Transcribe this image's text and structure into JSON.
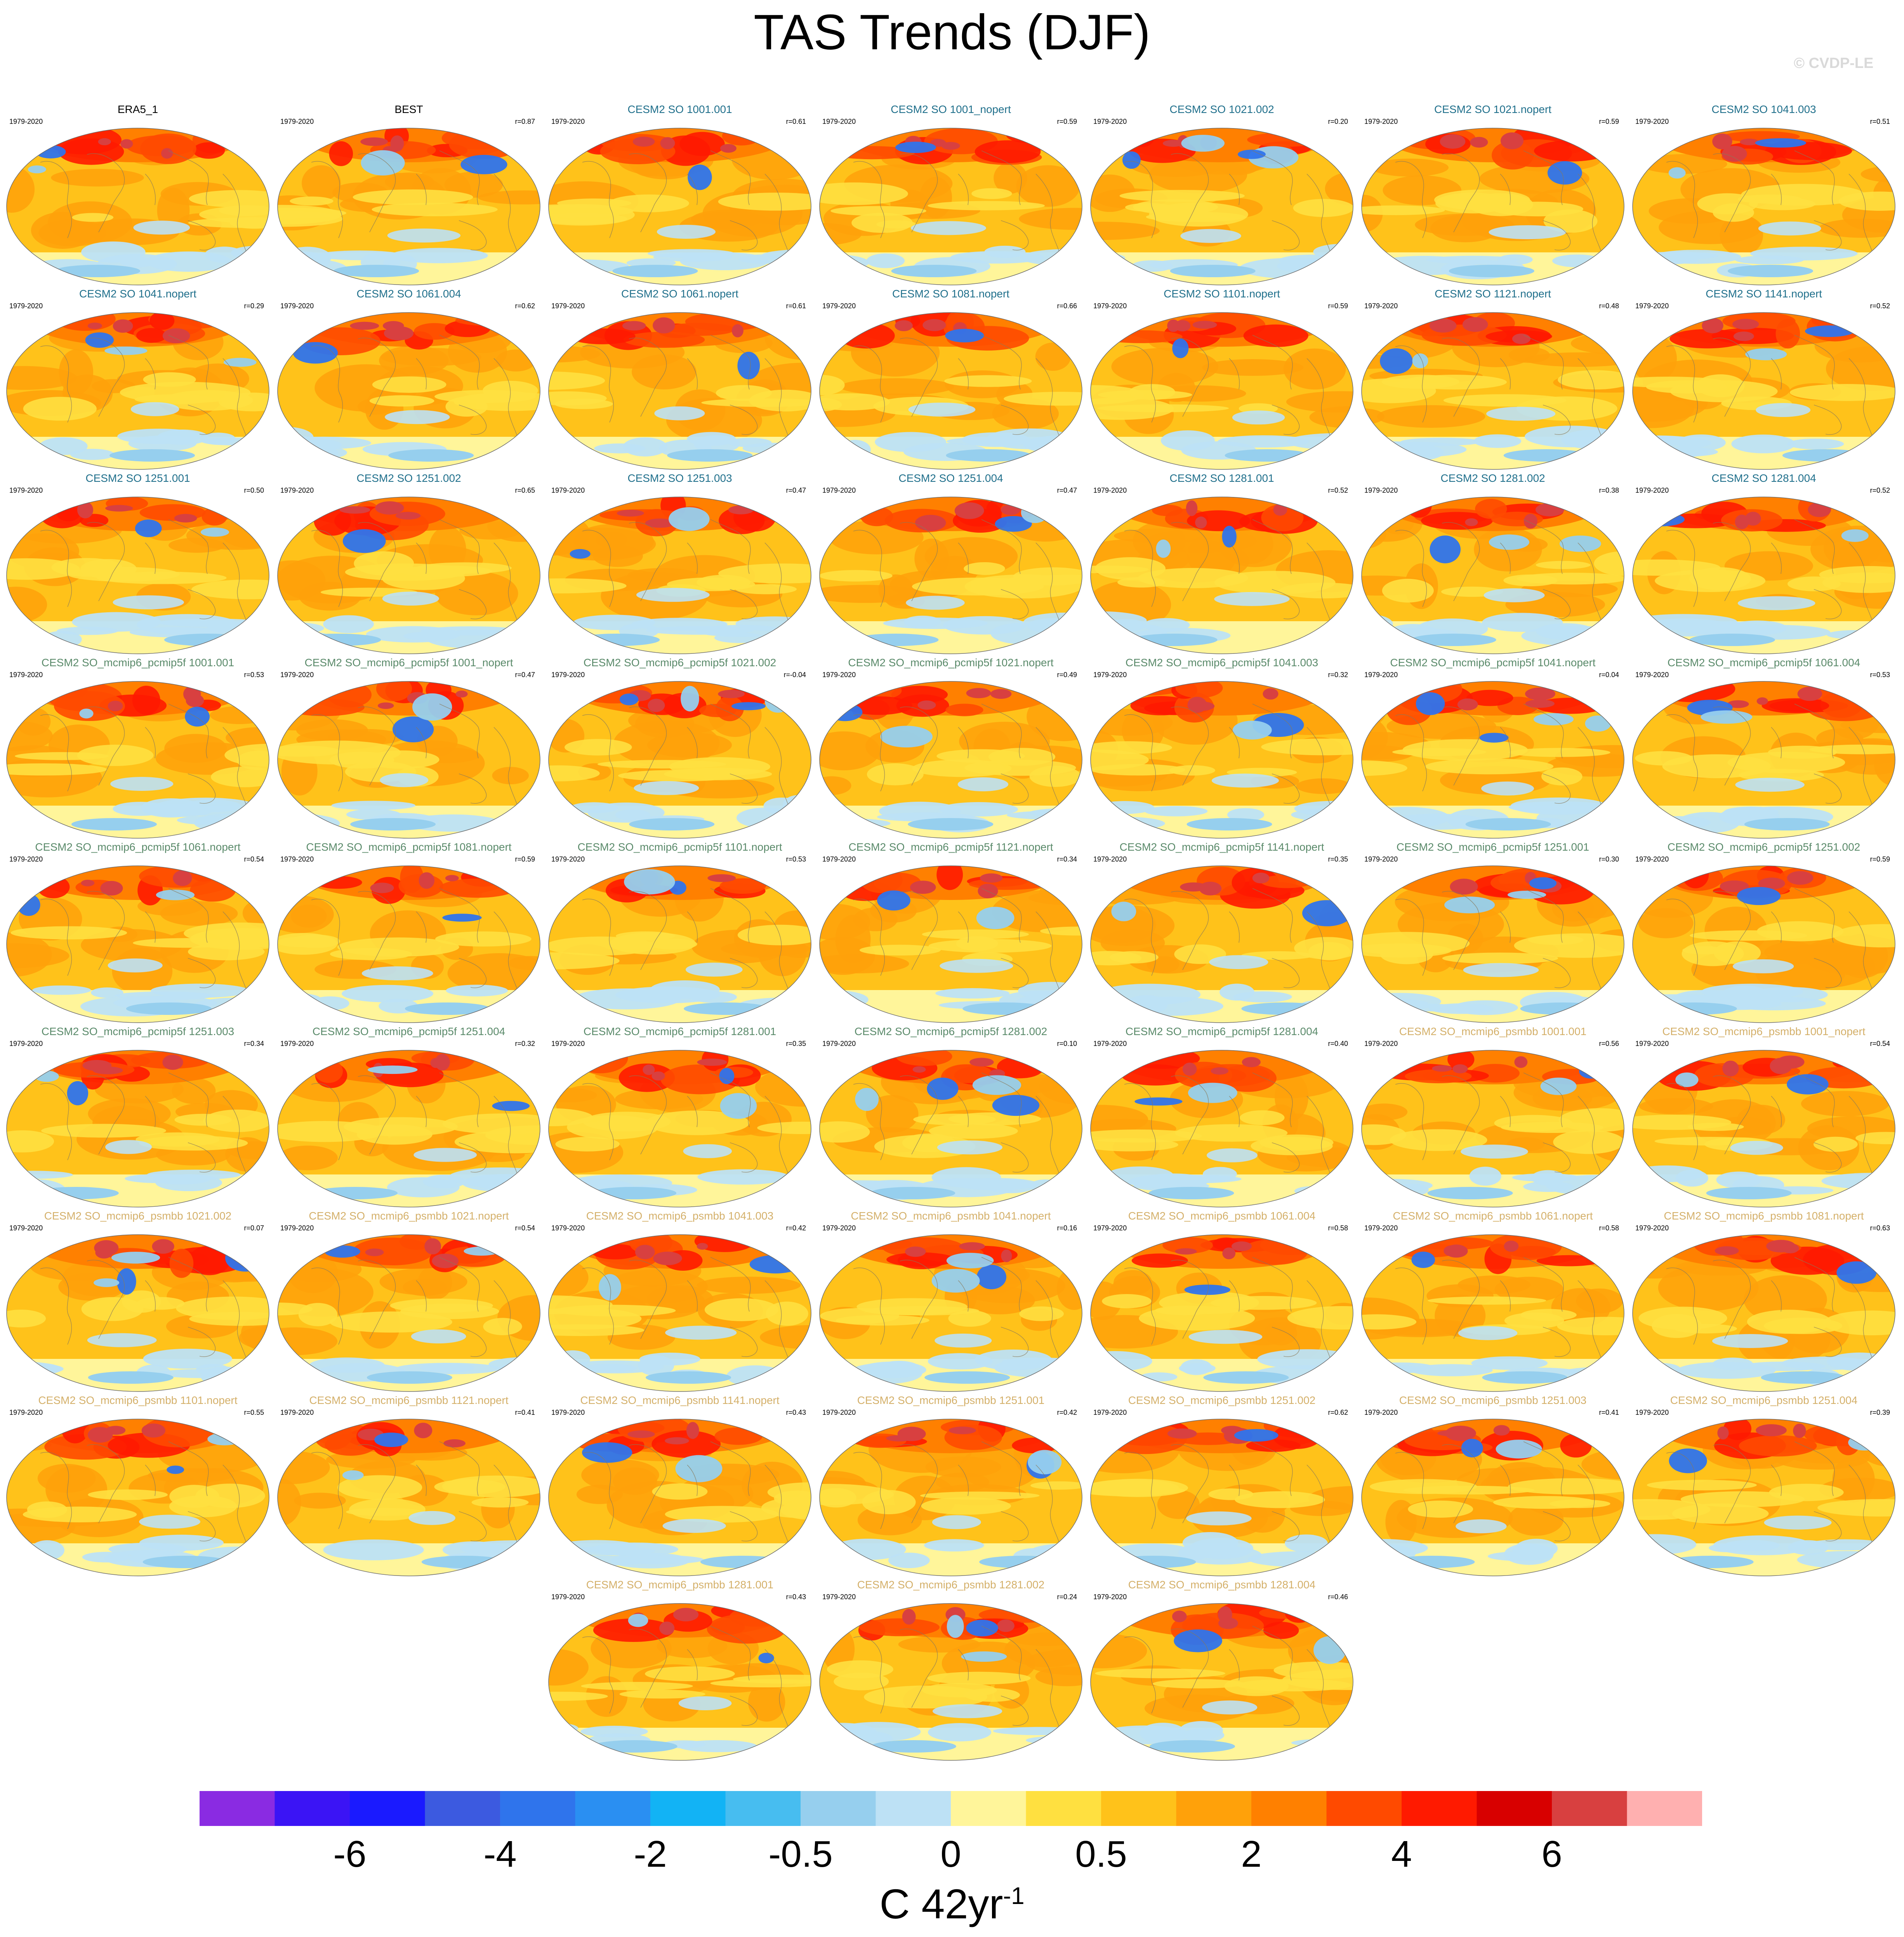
{
  "title": "TAS Trends (DJF)",
  "credit": "© CVDP-LE",
  "period": "1979-2020",
  "group_colors": {
    "obs": "#000000",
    "so": "#1f6f8b",
    "pcmip5f": "#5a8a6a",
    "psmbb": "#d4b06a"
  },
  "panels": [
    {
      "title": "ERA5_1",
      "group": "obs",
      "r": "",
      "cold": 0.2
    },
    {
      "title": "BEST",
      "group": "obs",
      "r": "r=0.87",
      "cold": 0.15
    },
    {
      "title": "CESM2 SO 1001.001",
      "group": "so",
      "r": "r=0.61",
      "cold": 0.1
    },
    {
      "title": "CESM2 SO 1001_nopert",
      "group": "so",
      "r": "r=0.59",
      "cold": 0.1
    },
    {
      "title": "CESM2 SO 1021.002",
      "group": "so",
      "r": "r=0.20",
      "cold": 0.35
    },
    {
      "title": "CESM2 SO 1021.nopert",
      "group": "so",
      "r": "r=0.59",
      "cold": 0.1
    },
    {
      "title": "CESM2 SO 1041.003",
      "group": "so",
      "r": "r=0.51",
      "cold": 0.15
    },
    {
      "title": "CESM2 SO 1041.nopert",
      "group": "so",
      "r": "r=0.29",
      "cold": 0.3
    },
    {
      "title": "CESM2 SO 1061.004",
      "group": "so",
      "r": "r=0.62",
      "cold": 0.1
    },
    {
      "title": "CESM2 SO 1061.nopert",
      "group": "so",
      "r": "r=0.61",
      "cold": 0.1
    },
    {
      "title": "CESM2 SO 1081.nopert",
      "group": "so",
      "r": "r=0.66",
      "cold": 0.1
    },
    {
      "title": "CESM2 SO 1101.nopert",
      "group": "so",
      "r": "r=0.59",
      "cold": 0.1
    },
    {
      "title": "CESM2 SO 1121.nopert",
      "group": "so",
      "r": "r=0.48",
      "cold": 0.15
    },
    {
      "title": "CESM2 SO 1141.nopert",
      "group": "so",
      "r": "r=0.52",
      "cold": 0.15
    },
    {
      "title": "CESM2 SO 1251.001",
      "group": "so",
      "r": "r=0.50",
      "cold": 0.15
    },
    {
      "title": "CESM2 SO 1251.002",
      "group": "so",
      "r": "r=0.65",
      "cold": 0.1
    },
    {
      "title": "CESM2 SO 1251.003",
      "group": "so",
      "r": "r=0.47",
      "cold": 0.15
    },
    {
      "title": "CESM2 SO 1251.004",
      "group": "so",
      "r": "r=0.47",
      "cold": 0.15
    },
    {
      "title": "CESM2 SO 1281.001",
      "group": "so",
      "r": "r=0.52",
      "cold": 0.15
    },
    {
      "title": "CESM2 SO 1281.002",
      "group": "so",
      "r": "r=0.38",
      "cold": 0.25
    },
    {
      "title": "CESM2 SO 1281.004",
      "group": "so",
      "r": "r=0.52",
      "cold": 0.15
    },
    {
      "title": "CESM2 SO_mcmip6_pcmip5f 1001.001",
      "group": "pcmip5f",
      "r": "r=0.53",
      "cold": 0.15
    },
    {
      "title": "CESM2 SO_mcmip6_pcmip5f 1001_nopert",
      "group": "pcmip5f",
      "r": "r=0.47",
      "cold": 0.2
    },
    {
      "title": "CESM2 SO_mcmip6_pcmip5f 1021.002",
      "group": "pcmip5f",
      "r": "r=-0.04",
      "cold": 0.4
    },
    {
      "title": "CESM2 SO_mcmip6_pcmip5f 1021.nopert",
      "group": "pcmip5f",
      "r": "r=0.49",
      "cold": 0.15
    },
    {
      "title": "CESM2 SO_mcmip6_pcmip5f 1041.003",
      "group": "pcmip5f",
      "r": "r=0.32",
      "cold": 0.2
    },
    {
      "title": "CESM2 SO_mcmip6_pcmip5f 1041.nopert",
      "group": "pcmip5f",
      "r": "r=0.04",
      "cold": 0.35
    },
    {
      "title": "CESM2 SO_mcmip6_pcmip5f 1061.004",
      "group": "pcmip5f",
      "r": "r=0.53",
      "cold": 0.15
    },
    {
      "title": "CESM2 SO_mcmip6_pcmip5f 1061.nopert",
      "group": "pcmip5f",
      "r": "r=0.54",
      "cold": 0.15
    },
    {
      "title": "CESM2 SO_mcmip6_pcmip5f 1081.nopert",
      "group": "pcmip5f",
      "r": "r=0.59",
      "cold": 0.1
    },
    {
      "title": "CESM2 SO_mcmip6_pcmip5f 1101.nopert",
      "group": "pcmip5f",
      "r": "r=0.53",
      "cold": 0.15
    },
    {
      "title": "CESM2 SO_mcmip6_pcmip5f 1121.nopert",
      "group": "pcmip5f",
      "r": "r=0.34",
      "cold": 0.2
    },
    {
      "title": "CESM2 SO_mcmip6_pcmip5f 1141.nopert",
      "group": "pcmip5f",
      "r": "r=0.35",
      "cold": 0.2
    },
    {
      "title": "CESM2 SO_mcmip6_pcmip5f 1251.001",
      "group": "pcmip5f",
      "r": "r=0.30",
      "cold": 0.3
    },
    {
      "title": "CESM2 SO_mcmip6_pcmip5f 1251.002",
      "group": "pcmip5f",
      "r": "r=0.59",
      "cold": 0.1
    },
    {
      "title": "CESM2 SO_mcmip6_pcmip5f 1251.003",
      "group": "pcmip5f",
      "r": "r=0.34",
      "cold": 0.2
    },
    {
      "title": "CESM2 SO_mcmip6_pcmip5f 1251.004",
      "group": "pcmip5f",
      "r": "r=0.32",
      "cold": 0.2
    },
    {
      "title": "CESM2 SO_mcmip6_pcmip5f 1281.001",
      "group": "pcmip5f",
      "r": "r=0.35",
      "cold": 0.2
    },
    {
      "title": "CESM2 SO_mcmip6_pcmip5f 1281.002",
      "group": "pcmip5f",
      "r": "r=0.10",
      "cold": 0.35
    },
    {
      "title": "CESM2 SO_mcmip6_pcmip5f 1281.004",
      "group": "pcmip5f",
      "r": "r=0.40",
      "cold": 0.15
    },
    {
      "title": "CESM2 SO_mcmip6_psmbb 1001.001",
      "group": "psmbb",
      "r": "r=0.56",
      "cold": 0.15
    },
    {
      "title": "CESM2 SO_mcmip6_psmbb 1001_nopert",
      "group": "psmbb",
      "r": "r=0.54",
      "cold": 0.15
    },
    {
      "title": "CESM2 SO_mcmip6_psmbb 1021.002",
      "group": "psmbb",
      "r": "r=0.07",
      "cold": 0.35
    },
    {
      "title": "CESM2 SO_mcmip6_psmbb 1021.nopert",
      "group": "psmbb",
      "r": "r=0.54",
      "cold": 0.15
    },
    {
      "title": "CESM2 SO_mcmip6_psmbb 1041.003",
      "group": "psmbb",
      "r": "r=0.42",
      "cold": 0.2
    },
    {
      "title": "CESM2 SO_mcmip6_psmbb 1041.nopert",
      "group": "psmbb",
      "r": "r=0.16",
      "cold": 0.3
    },
    {
      "title": "CESM2 SO_mcmip6_psmbb 1061.004",
      "group": "psmbb",
      "r": "r=0.58",
      "cold": 0.1
    },
    {
      "title": "CESM2 SO_mcmip6_psmbb 1061.nopert",
      "group": "psmbb",
      "r": "r=0.58",
      "cold": 0.1
    },
    {
      "title": "CESM2 SO_mcmip6_psmbb 1081.nopert",
      "group": "psmbb",
      "r": "r=0.63",
      "cold": 0.1
    },
    {
      "title": "CESM2 SO_mcmip6_psmbb 1101.nopert",
      "group": "psmbb",
      "r": "r=0.55",
      "cold": 0.15
    },
    {
      "title": "CESM2 SO_mcmip6_psmbb 1121.nopert",
      "group": "psmbb",
      "r": "r=0.41",
      "cold": 0.15
    },
    {
      "title": "CESM2 SO_mcmip6_psmbb 1141.nopert",
      "group": "psmbb",
      "r": "r=0.43",
      "cold": 0.15
    },
    {
      "title": "CESM2 SO_mcmip6_psmbb 1251.001",
      "group": "psmbb",
      "r": "r=0.42",
      "cold": 0.2
    },
    {
      "title": "CESM2 SO_mcmip6_psmbb 1251.002",
      "group": "psmbb",
      "r": "r=0.62",
      "cold": 0.1
    },
    {
      "title": "CESM2 SO_mcmip6_psmbb 1251.003",
      "group": "psmbb",
      "r": "r=0.41",
      "cold": 0.15
    },
    {
      "title": "CESM2 SO_mcmip6_psmbb 1251.004",
      "group": "psmbb",
      "r": "r=0.39",
      "cold": 0.15
    },
    {
      "title": "CESM2 SO_mcmip6_psmbb 1281.001",
      "group": "psmbb",
      "r": "r=0.43",
      "cold": 0.15
    },
    {
      "title": "CESM2 SO_mcmip6_psmbb 1281.002",
      "group": "psmbb",
      "r": "r=0.24",
      "cold": 0.3
    },
    {
      "title": "CESM2 SO_mcmip6_psmbb 1281.004",
      "group": "psmbb",
      "r": "r=0.46",
      "cold": 0.15
    }
  ],
  "colorbar": {
    "colors": [
      "#8a2be2",
      "#3b14f5",
      "#1a1aff",
      "#3c5ae0",
      "#2f74ec",
      "#2a8ff2",
      "#12b3f5",
      "#47bdf0",
      "#96cfee",
      "#bde1f5",
      "#fff59a",
      "#ffe040",
      "#ffc21a",
      "#ffa10a",
      "#ff8000",
      "#ff4a00",
      "#ff1a00",
      "#d80000",
      "#d84040",
      "#ffb0b0"
    ],
    "labels": [
      "-6",
      "-4",
      "-2",
      "-0.5",
      "0",
      "0.5",
      "2",
      "4",
      "6"
    ],
    "units_main": "C 42yr",
    "units_exp": "-1"
  }
}
